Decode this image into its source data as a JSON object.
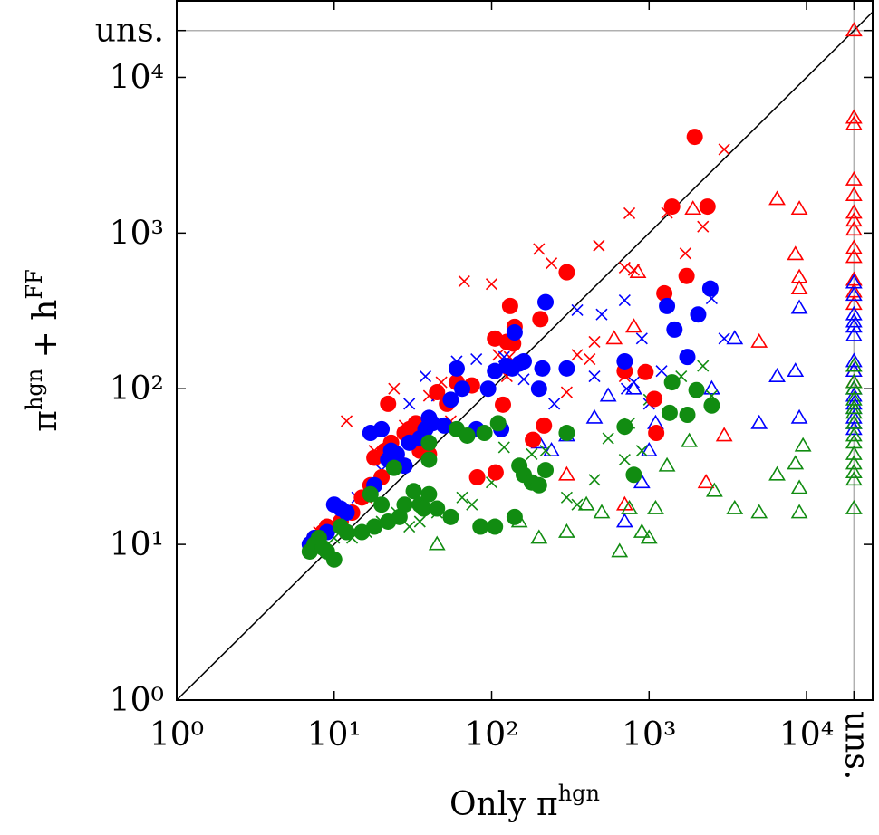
{
  "chart_data": {
    "type": "scatter",
    "xlabel": [
      {
        "text": "Only π"
      },
      {
        "text": "hgn",
        "sup": true
      }
    ],
    "ylabel": [
      {
        "text": "π"
      },
      {
        "text": "hgn",
        "sup": true
      },
      {
        "text": " + h"
      },
      {
        "text": "FF",
        "sup": true
      }
    ],
    "log_x": true,
    "log_y": true,
    "xlim": [
      1,
      26300
    ],
    "ylim": [
      1,
      31000
    ],
    "xticks": [
      {
        "value": 1,
        "label": "10⁰"
      },
      {
        "value": 10,
        "label": "10¹"
      },
      {
        "value": 100,
        "label": "10²"
      },
      {
        "value": 1000,
        "label": "10³"
      },
      {
        "value": 10000,
        "label": "10⁴"
      },
      {
        "value": 20000,
        "label": "uns."
      }
    ],
    "yticks": [
      {
        "value": 1,
        "label": "10⁰"
      },
      {
        "value": 10,
        "label": "10¹"
      },
      {
        "value": 100,
        "label": "10²"
      },
      {
        "value": 1000,
        "label": "10³"
      },
      {
        "value": 10000,
        "label": "10⁴"
      },
      {
        "value": 20000,
        "label": "uns."
      }
    ],
    "series": [
      {
        "color": "#ff0000",
        "marker": "triangle",
        "points": [
          [
            300,
            28
          ],
          [
            600,
            210
          ],
          [
            700,
            18
          ],
          [
            800,
            250
          ],
          [
            850,
            560
          ],
          [
            1900,
            1430
          ],
          [
            2300,
            25
          ],
          [
            3000,
            50
          ],
          [
            5000,
            200
          ],
          [
            6500,
            1650
          ],
          [
            9000,
            520
          ],
          [
            9000,
            1430
          ],
          [
            8500,
            730
          ],
          [
            9000,
            440
          ],
          [
            20000,
            20000
          ],
          [
            20000,
            5500
          ],
          [
            20000,
            5000
          ],
          [
            20000,
            2200
          ],
          [
            20000,
            1750
          ],
          [
            20000,
            1350
          ],
          [
            20000,
            1200
          ],
          [
            20000,
            1050
          ],
          [
            20000,
            800
          ],
          [
            20000,
            700
          ],
          [
            20000,
            500
          ],
          [
            20000,
            420
          ],
          [
            20000,
            350
          ],
          [
            20000,
            130
          ],
          [
            20000,
            110
          ]
        ]
      },
      {
        "color": "#0000ff",
        "marker": "triangle",
        "points": [
          [
            200,
            45
          ],
          [
            240,
            40
          ],
          [
            300,
            50
          ],
          [
            450,
            65
          ],
          [
            550,
            90
          ],
          [
            700,
            14
          ],
          [
            800,
            100
          ],
          [
            900,
            25
          ],
          [
            1000,
            40
          ],
          [
            1100,
            60
          ],
          [
            2500,
            100
          ],
          [
            3500,
            210
          ],
          [
            5000,
            60
          ],
          [
            6500,
            120
          ],
          [
            8500,
            130
          ],
          [
            9000,
            330
          ],
          [
            9000,
            65
          ],
          [
            20000,
            480
          ],
          [
            20000,
            400
          ],
          [
            20000,
            300
          ],
          [
            20000,
            270
          ],
          [
            20000,
            250
          ],
          [
            20000,
            220
          ],
          [
            20000,
            150
          ],
          [
            20000,
            130
          ],
          [
            20000,
            100
          ],
          [
            20000,
            90
          ],
          [
            20000,
            80
          ],
          [
            20000,
            75
          ],
          [
            20000,
            65
          ],
          [
            20000,
            60
          ],
          [
            20000,
            55
          ]
        ]
      },
      {
        "color": "#118c11",
        "marker": "triangle",
        "points": [
          [
            45,
            10
          ],
          [
            150,
            14
          ],
          [
            200,
            11
          ],
          [
            300,
            12
          ],
          [
            400,
            18
          ],
          [
            500,
            16
          ],
          [
            650,
            9
          ],
          [
            750,
            17
          ],
          [
            900,
            12
          ],
          [
            1000,
            11
          ],
          [
            1100,
            17
          ],
          [
            1300,
            32
          ],
          [
            1800,
            46
          ],
          [
            2600,
            22
          ],
          [
            3500,
            17
          ],
          [
            5000,
            16
          ],
          [
            6500,
            28
          ],
          [
            8500,
            33
          ],
          [
            9000,
            23
          ],
          [
            9000,
            16
          ],
          [
            9500,
            43
          ],
          [
            20000,
            140
          ],
          [
            20000,
            110
          ],
          [
            20000,
            100
          ],
          [
            20000,
            85
          ],
          [
            20000,
            75
          ],
          [
            20000,
            70
          ],
          [
            20000,
            60
          ],
          [
            20000,
            50
          ],
          [
            20000,
            45
          ],
          [
            20000,
            38
          ],
          [
            20000,
            33
          ],
          [
            20000,
            29
          ],
          [
            20000,
            26
          ],
          [
            20000,
            17
          ]
        ]
      },
      {
        "color": "#ff0000",
        "marker": "cross",
        "points": [
          [
            8,
            12
          ],
          [
            12,
            62
          ],
          [
            16,
            20
          ],
          [
            18,
            40
          ],
          [
            24,
            100
          ],
          [
            28,
            58
          ],
          [
            35,
            42
          ],
          [
            40,
            90
          ],
          [
            48,
            110
          ],
          [
            55,
            62
          ],
          [
            67,
            490
          ],
          [
            100,
            470
          ],
          [
            110,
            165
          ],
          [
            125,
            120
          ],
          [
            130,
            160
          ],
          [
            200,
            790
          ],
          [
            240,
            640
          ],
          [
            300,
            95
          ],
          [
            350,
            165
          ],
          [
            450,
            200
          ],
          [
            480,
            830
          ],
          [
            700,
            120
          ],
          [
            750,
            1340
          ],
          [
            800,
            580
          ],
          [
            1300,
            1350
          ],
          [
            1700,
            740
          ],
          [
            2200,
            1100
          ],
          [
            3000,
            3450
          ],
          [
            420,
            155
          ],
          [
            700,
            600
          ]
        ]
      },
      {
        "color": "#0000ff",
        "marker": "cross",
        "points": [
          [
            9,
            13
          ],
          [
            14,
            20
          ],
          [
            20,
            30
          ],
          [
            25,
            35
          ],
          [
            30,
            80
          ],
          [
            38,
            120
          ],
          [
            45,
            90
          ],
          [
            60,
            150
          ],
          [
            70,
            105
          ],
          [
            80,
            155
          ],
          [
            120,
            160
          ],
          [
            160,
            115
          ],
          [
            250,
            80
          ],
          [
            350,
            320
          ],
          [
            450,
            120
          ],
          [
            500,
            300
          ],
          [
            700,
            370
          ],
          [
            720,
            100
          ],
          [
            800,
            110
          ],
          [
            1000,
            80
          ],
          [
            1200,
            130
          ],
          [
            2500,
            380
          ],
          [
            3000,
            210
          ],
          [
            900,
            210
          ]
        ]
      },
      {
        "color": "#118c11",
        "marker": "cross",
        "points": [
          [
            8,
            10
          ],
          [
            10,
            11
          ],
          [
            13,
            11
          ],
          [
            16,
            12
          ],
          [
            20,
            14
          ],
          [
            25,
            16
          ],
          [
            30,
            13
          ],
          [
            35,
            14
          ],
          [
            45,
            16
          ],
          [
            65,
            20
          ],
          [
            75,
            18
          ],
          [
            100,
            25
          ],
          [
            120,
            42
          ],
          [
            180,
            38
          ],
          [
            220,
            40
          ],
          [
            300,
            20
          ],
          [
            350,
            18
          ],
          [
            450,
            26
          ],
          [
            550,
            48
          ],
          [
            700,
            35
          ],
          [
            750,
            60
          ],
          [
            900,
            40
          ],
          [
            1000,
            85
          ],
          [
            1600,
            120
          ],
          [
            2200,
            140
          ],
          [
            2500,
            90
          ]
        ]
      },
      {
        "color": "#ff0000",
        "marker": "circle",
        "points": [
          [
            7.5,
            11
          ],
          [
            8.5,
            12
          ],
          [
            9,
            13
          ],
          [
            11,
            14
          ],
          [
            13,
            16
          ],
          [
            15,
            20
          ],
          [
            17,
            24
          ],
          [
            18,
            36
          ],
          [
            20,
            27
          ],
          [
            21,
            40
          ],
          [
            22,
            80
          ],
          [
            23,
            45
          ],
          [
            25,
            35
          ],
          [
            28,
            52
          ],
          [
            30,
            55
          ],
          [
            33,
            60
          ],
          [
            35,
            40
          ],
          [
            40,
            38
          ],
          [
            45,
            95
          ],
          [
            52,
            80
          ],
          [
            60,
            110
          ],
          [
            75,
            105
          ],
          [
            81,
            27
          ],
          [
            106,
            29
          ],
          [
            105,
            210
          ],
          [
            118,
            79
          ],
          [
            125,
            200
          ],
          [
            131,
            340
          ],
          [
            137,
            195
          ],
          [
            140,
            250
          ],
          [
            183,
            47
          ],
          [
            204,
            280
          ],
          [
            215,
            58
          ],
          [
            300,
            560
          ],
          [
            700,
            130
          ],
          [
            950,
            128
          ],
          [
            1080,
            86
          ],
          [
            1110,
            52
          ],
          [
            1250,
            410
          ],
          [
            1400,
            1480
          ],
          [
            1730,
            530
          ],
          [
            1950,
            4150
          ],
          [
            2350,
            1480
          ]
        ]
      },
      {
        "color": "#0000ff",
        "marker": "circle",
        "points": [
          [
            7,
            10
          ],
          [
            7.5,
            11
          ],
          [
            8,
            10
          ],
          [
            9,
            12
          ],
          [
            10,
            18
          ],
          [
            11,
            17
          ],
          [
            12,
            16
          ],
          [
            17,
            52
          ],
          [
            18,
            24
          ],
          [
            20,
            55
          ],
          [
            22,
            35
          ],
          [
            23,
            40
          ],
          [
            25,
            38
          ],
          [
            28,
            32
          ],
          [
            30,
            45
          ],
          [
            35,
            48
          ],
          [
            38,
            55
          ],
          [
            40,
            65
          ],
          [
            42,
            60
          ],
          [
            50,
            58
          ],
          [
            55,
            85
          ],
          [
            60,
            135
          ],
          [
            65,
            100
          ],
          [
            80,
            55
          ],
          [
            95,
            100
          ],
          [
            105,
            130
          ],
          [
            115,
            55
          ],
          [
            125,
            140
          ],
          [
            135,
            135
          ],
          [
            140,
            230
          ],
          [
            150,
            145
          ],
          [
            160,
            150
          ],
          [
            200,
            100
          ],
          [
            210,
            135
          ],
          [
            220,
            360
          ],
          [
            300,
            135
          ],
          [
            700,
            150
          ],
          [
            1300,
            340
          ],
          [
            1450,
            240
          ],
          [
            1750,
            160
          ],
          [
            2050,
            300
          ],
          [
            2450,
            440
          ]
        ]
      },
      {
        "color": "#118c11",
        "marker": "circle",
        "points": [
          [
            7,
            9
          ],
          [
            7.5,
            10
          ],
          [
            8,
            11
          ],
          [
            8.5,
            9.5
          ],
          [
            9,
            9
          ],
          [
            10,
            8
          ],
          [
            11,
            13
          ],
          [
            12,
            12
          ],
          [
            15,
            12
          ],
          [
            17,
            21
          ],
          [
            18,
            13
          ],
          [
            20,
            18
          ],
          [
            22,
            14
          ],
          [
            24,
            31
          ],
          [
            26,
            15
          ],
          [
            28,
            18
          ],
          [
            32,
            22
          ],
          [
            35,
            18
          ],
          [
            37,
            17
          ],
          [
            40,
            21
          ],
          [
            40,
            45
          ],
          [
            40,
            35
          ],
          [
            45,
            17
          ],
          [
            55,
            15
          ],
          [
            60,
            55
          ],
          [
            70,
            50
          ],
          [
            85,
            13
          ],
          [
            90,
            52
          ],
          [
            105,
            13
          ],
          [
            110,
            60
          ],
          [
            140,
            15
          ],
          [
            150,
            32
          ],
          [
            160,
            28
          ],
          [
            180,
            25
          ],
          [
            200,
            24
          ],
          [
            220,
            30
          ],
          [
            300,
            52
          ],
          [
            700,
            57
          ],
          [
            800,
            28
          ],
          [
            1400,
            110
          ],
          [
            1350,
            70
          ],
          [
            1750,
            68
          ],
          [
            2000,
            98
          ],
          [
            2500,
            78
          ]
        ]
      }
    ]
  }
}
